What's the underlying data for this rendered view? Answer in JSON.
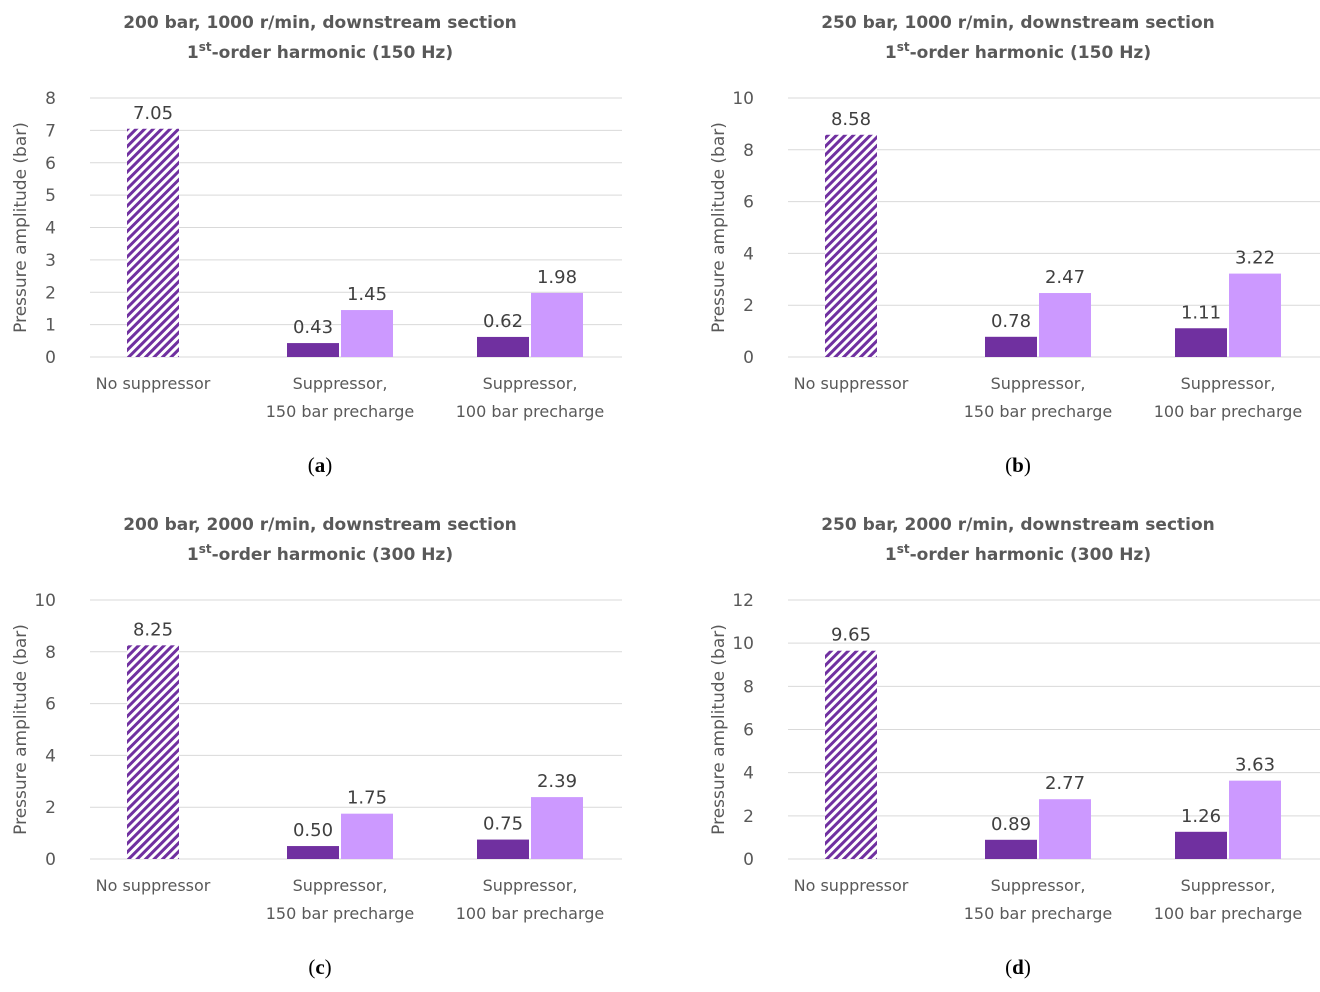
{
  "chart_data": [
    {
      "type": "bar",
      "caption": "a",
      "title_line1": "200 bar, 1000 r/min, downstream section",
      "title_line2_prefix": "1",
      "title_line2_sup": "st",
      "title_line2_suffix": "-order harmonic (150 Hz)",
      "ylabel": "Pressure amplitude (bar)",
      "ylim": [
        0,
        8
      ],
      "yticks": [
        0,
        1,
        2,
        3,
        4,
        5,
        6,
        7,
        8
      ],
      "categories": [
        [
          "No suppressor"
        ],
        [
          "Suppressor,",
          "150 bar precharge"
        ],
        [
          "Suppressor,",
          "100 bar precharge"
        ]
      ],
      "series": [
        {
          "values": [
            7.05,
            0.43,
            0.62
          ],
          "labels": [
            "7.05",
            "0.43",
            "0.62"
          ]
        },
        {
          "values": [
            null,
            1.45,
            1.98
          ],
          "labels": [
            "",
            "1.45",
            "1.98"
          ]
        }
      ],
      "grid": true
    },
    {
      "type": "bar",
      "caption": "b",
      "title_line1": "250 bar, 1000 r/min, downstream section",
      "title_line2_prefix": "1",
      "title_line2_sup": "st",
      "title_line2_suffix": "-order harmonic (150 Hz)",
      "ylabel": "Pressure amplitude (bar)",
      "ylim": [
        0,
        10
      ],
      "yticks": [
        0,
        2,
        4,
        6,
        8,
        10
      ],
      "categories": [
        [
          "No suppressor"
        ],
        [
          "Suppressor,",
          "150 bar precharge"
        ],
        [
          "Suppressor,",
          "100 bar precharge"
        ]
      ],
      "series": [
        {
          "values": [
            8.58,
            0.78,
            1.11
          ],
          "labels": [
            "8.58",
            "0.78",
            "1.11"
          ]
        },
        {
          "values": [
            null,
            2.47,
            3.22
          ],
          "labels": [
            "",
            "2.47",
            "3.22"
          ]
        }
      ],
      "grid": true
    },
    {
      "type": "bar",
      "caption": "c",
      "title_line1": "200 bar, 2000 r/min, downstream section",
      "title_line2_prefix": "1",
      "title_line2_sup": "st",
      "title_line2_suffix": "-order harmonic (300 Hz)",
      "ylabel": "Pressure amplitude (bar)",
      "ylim": [
        0,
        10
      ],
      "yticks": [
        0,
        2,
        4,
        6,
        8,
        10
      ],
      "categories": [
        [
          "No suppressor"
        ],
        [
          "Suppressor,",
          "150 bar precharge"
        ],
        [
          "Suppressor,",
          "100 bar precharge"
        ]
      ],
      "series": [
        {
          "values": [
            8.25,
            0.5,
            0.75
          ],
          "labels": [
            "8.25",
            "0.50",
            "0.75"
          ]
        },
        {
          "values": [
            null,
            1.75,
            2.39
          ],
          "labels": [
            "",
            "1.75",
            "2.39"
          ]
        }
      ],
      "grid": true
    },
    {
      "type": "bar",
      "caption": "d",
      "title_line1": "250 bar, 2000 r/min, downstream section",
      "title_line2_prefix": "1",
      "title_line2_sup": "st",
      "title_line2_suffix": "-order harmonic (300 Hz)",
      "ylabel": "Pressure amplitude (bar)",
      "ylim": [
        0,
        12
      ],
      "yticks": [
        0,
        2,
        4,
        6,
        8,
        10,
        12
      ],
      "categories": [
        [
          "No suppressor"
        ],
        [
          "Suppressor,",
          "150 bar precharge"
        ],
        [
          "Suppressor,",
          "100 bar precharge"
        ]
      ],
      "series": [
        {
          "values": [
            9.65,
            0.89,
            1.26
          ],
          "labels": [
            "9.65",
            "0.89",
            "1.26"
          ]
        },
        {
          "values": [
            null,
            2.77,
            3.63
          ],
          "labels": [
            "",
            "2.77",
            "3.63"
          ]
        }
      ],
      "grid": true
    }
  ],
  "colors": {
    "hatch_dark": "#7030a0",
    "hatch_light": "#ffffff",
    "series_dark": "#7030a0",
    "series_light": "#cc99ff",
    "grid": "#d9d9d9",
    "text": "#595959"
  }
}
